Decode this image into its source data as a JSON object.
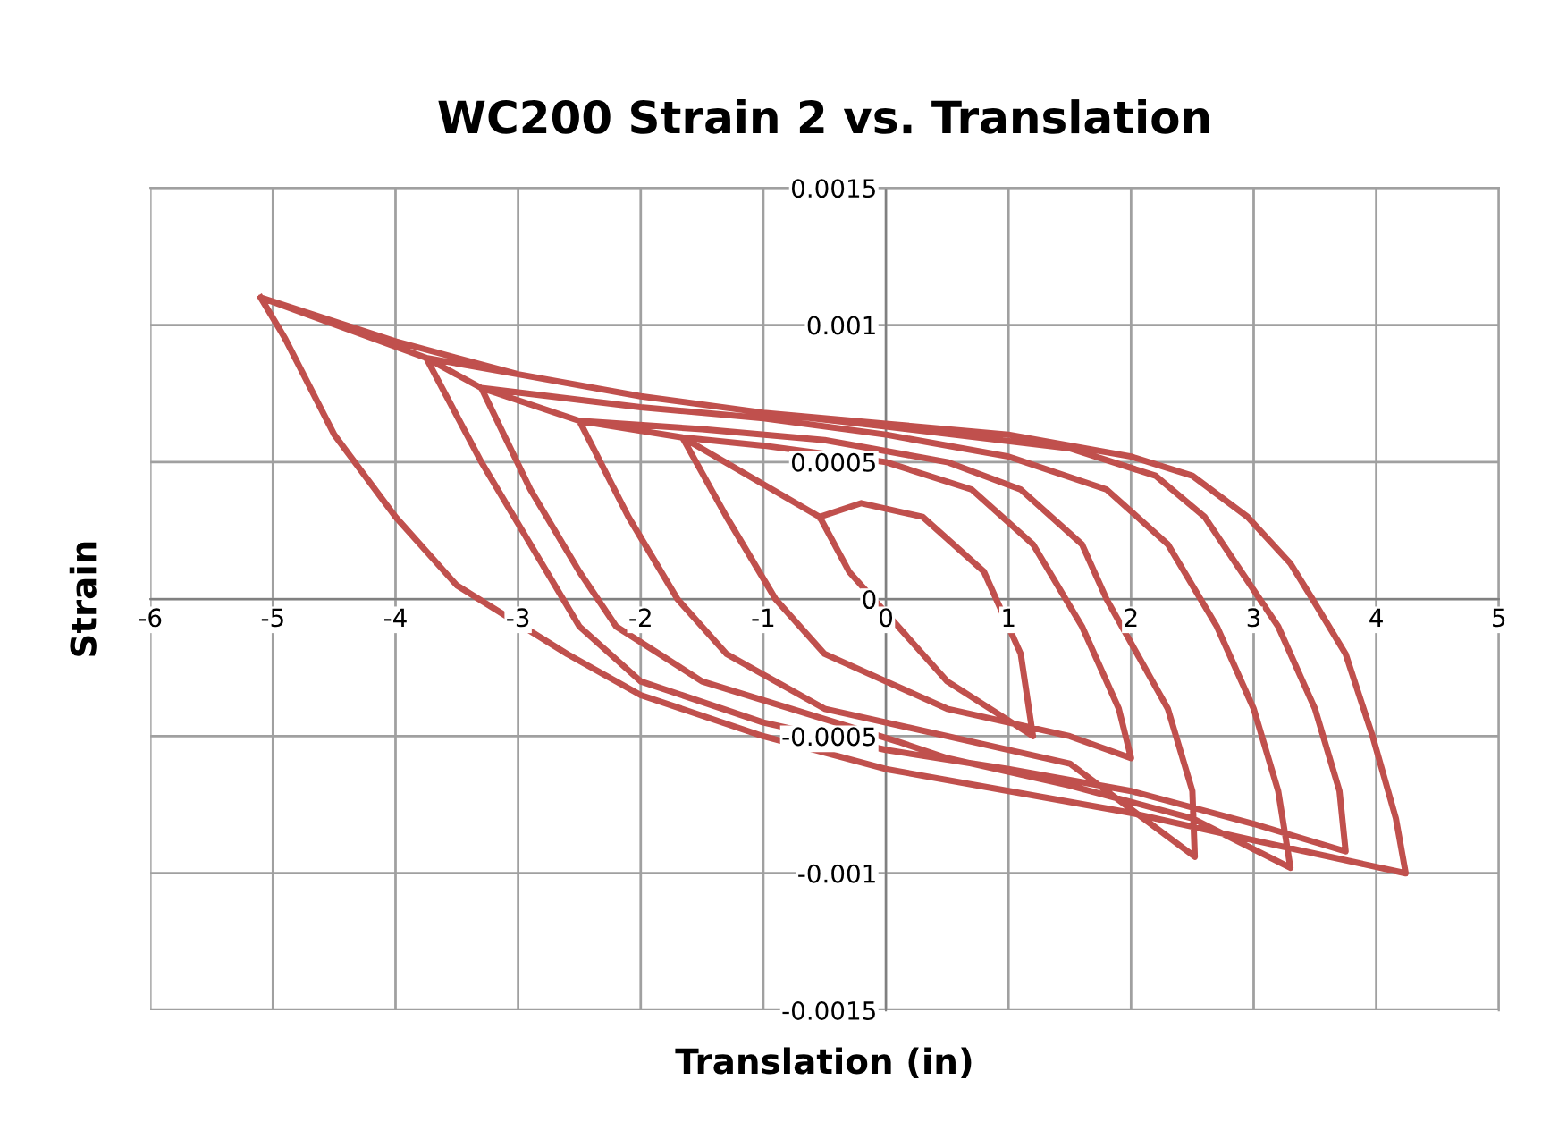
{
  "chart_data": {
    "type": "line",
    "title": "WC200 Strain 2 vs. Translation",
    "xlabel": "Translation (in)",
    "ylabel": "Strain",
    "series": [
      {
        "color": "#c0504d",
        "x": [
          -5.1,
          -4.9,
          -4.5,
          -4.0,
          -3.5,
          -2.6,
          -2.0,
          -1.0,
          0,
          1,
          2,
          3,
          4.24,
          4.16,
          3.97,
          3.75,
          3.48,
          3.3,
          2.95,
          2.5,
          2,
          1,
          0,
          -1,
          -2,
          -3,
          -4,
          -5.1,
          -3.75,
          -3.3,
          -2.9,
          -2.5,
          -2,
          -1,
          0,
          1,
          2,
          3,
          3.75,
          3.7,
          3.5,
          3.2,
          2.9,
          2.6,
          2.2,
          1.5,
          0,
          -1,
          -2,
          -3,
          -3.75,
          -3.3,
          -2.9,
          -2.5,
          -2.2,
          -1.5,
          0.1,
          0.5,
          1.5,
          2.5,
          3.3,
          3.2,
          3.0,
          2.7,
          2.3,
          1.8,
          1,
          0,
          -1,
          -2,
          -3.3,
          -2.5,
          -2.1,
          -1.7,
          -1.3,
          -0.5,
          0.5,
          1.5,
          2.52,
          2.5,
          2.3,
          1.8,
          1.6,
          1.1,
          0.5,
          -0.5,
          -1.5,
          -2.5,
          -1.66,
          -1.3,
          -0.9,
          -0.5,
          0.5,
          1.5,
          2.0,
          1.9,
          1.6,
          1.2,
          0.7,
          0,
          -1,
          -1.66,
          -0.54,
          -0.3,
          0.3,
          0.5,
          1.2,
          1.1,
          0.8,
          0.3,
          -0.2,
          -0.54
        ],
        "values": [
          0.0011,
          0.00095,
          0.0006,
          0.0003,
          5e-05,
          -0.0002,
          -0.00035,
          -0.0005,
          -0.00062,
          -0.0007,
          -0.00078,
          -0.00088,
          -0.001,
          -0.0008,
          -0.0005,
          -0.0002,
          0,
          0.00013,
          0.0003,
          0.00045,
          0.00052,
          0.0006,
          0.00064,
          0.00068,
          0.00074,
          0.00082,
          0.00094,
          0.0011,
          0.00088,
          0.0005,
          0.0002,
          -0.0001,
          -0.0003,
          -0.00045,
          -0.00055,
          -0.00062,
          -0.0007,
          -0.00082,
          -0.00092,
          -0.0007,
          -0.0004,
          -0.0001,
          0.0001,
          0.0003,
          0.00045,
          0.00055,
          0.00063,
          0.00068,
          0.00074,
          0.00082,
          0.00088,
          0.00077,
          0.0004,
          0.0001,
          -0.0001,
          -0.0003,
          -0.00052,
          -0.00058,
          -0.00068,
          -0.0008,
          -0.00098,
          -0.0007,
          -0.0004,
          -0.0001,
          0.0002,
          0.0004,
          0.00052,
          0.0006,
          0.00066,
          0.0007,
          0.00077,
          0.00065,
          0.0003,
          0,
          -0.0002,
          -0.0004,
          -0.0005,
          -0.0006,
          -0.00094,
          -0.0007,
          -0.0004,
          0,
          0.0002,
          0.0004,
          0.0005,
          0.00058,
          0.00062,
          0.00065,
          0.00059,
          0.0003,
          0,
          -0.0002,
          -0.0004,
          -0.0005,
          -0.00058,
          -0.0004,
          -0.0001,
          0.0002,
          0.0004,
          0.0005,
          0.00056,
          0.00059,
          0.0003,
          0.0001,
          -0.0002,
          -0.0003,
          -0.0005,
          -0.0002,
          0.0001,
          0.0003,
          0.00035,
          0.0003
        ]
      }
    ],
    "xlim": [
      -6,
      5
    ],
    "xticks": [
      -6,
      -5,
      -4,
      -3,
      -2,
      -1,
      0,
      1,
      2,
      3,
      4,
      5
    ],
    "ylim": [
      -0.0015,
      0.0015
    ],
    "yticks": [
      -0.0015,
      -0.001,
      -0.0005,
      0,
      0.0005,
      0.001,
      0.0015
    ],
    "grid": true,
    "marker": "none",
    "line_style": "solid"
  }
}
